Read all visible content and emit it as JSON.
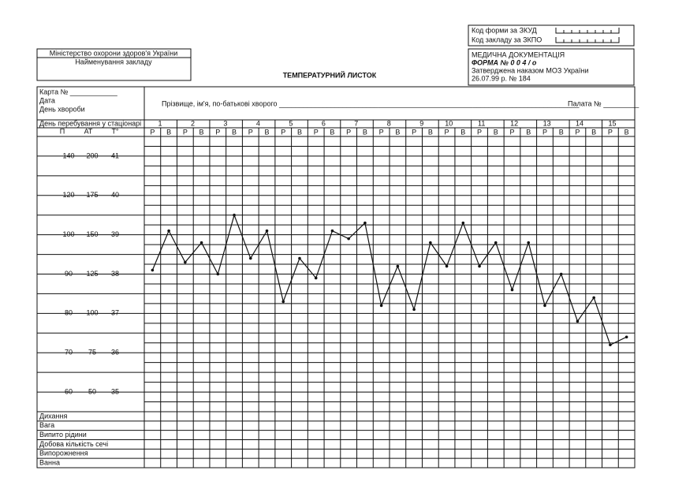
{
  "header": {
    "codes": [
      "Код форми за ЗКУД",
      "Код закладу за ЗКПО"
    ],
    "ministry": "Міністерство охорони здоров'я України",
    "institution": "Найменування закладу",
    "doc": [
      "МЕДИЧНА ДОКУМЕНТАЦІЯ",
      "ФОРМА № 0 0 4 / о",
      "Затверджена наказом МОЗ України",
      "26.07.99 р.  № 184"
    ],
    "title": "ТЕМПЕРАТУРНИЙ  ЛИСТОК"
  },
  "patient": {
    "card": "Карта № ____________",
    "date": "Дата",
    "illness_day": "День хвороби",
    "name": "Прізвище, ім'я, по-батькові хворого ____________________________________________________________________________",
    "ward": "Палата № _________"
  },
  "table": {
    "stay_day_label": "День перебування у стаціонарі",
    "column_heads": [
      "П",
      "АТ",
      "Т°"
    ],
    "days": [
      1,
      2,
      3,
      4,
      5,
      6,
      7,
      8,
      9,
      10,
      11,
      12,
      13,
      14,
      15
    ],
    "rows": [
      "Дихання",
      "Вага",
      "Випито рідини",
      "Добова кількість сечі",
      "Випорожнення",
      "Ванна"
    ]
  },
  "chart_data": {
    "type": "line",
    "categories": [
      "Р",
      "В",
      "Р",
      "В",
      "Р",
      "В",
      "Р",
      "В",
      "Р",
      "В",
      "Р",
      "В",
      "Р",
      "В",
      "Р",
      "В",
      "Р",
      "В",
      "Р",
      "В",
      "Р",
      "В",
      "Р",
      "В",
      "Р",
      "В",
      "Р",
      "В",
      "Р",
      "В"
    ],
    "values": [
      38.1,
      39.1,
      38.3,
      38.8,
      38.0,
      39.5,
      38.4,
      39.1,
      37.3,
      38.4,
      37.9,
      39.1,
      38.9,
      39.3,
      37.2,
      38.2,
      37.1,
      38.8,
      38.2,
      39.3,
      38.2,
      38.8,
      37.6,
      38.8,
      37.2,
      38.0,
      36.8,
      37.4,
      36.2,
      36.4
    ],
    "ylim": [
      34.5,
      41.5
    ],
    "yticks": [
      41,
      40,
      39,
      38,
      37,
      36,
      35
    ],
    "pulse_ticks": [
      140,
      120,
      100,
      90,
      80,
      70,
      60
    ],
    "bp_ticks": [
      200,
      175,
      150,
      125,
      100,
      75,
      50
    ],
    "color": "#111111"
  }
}
